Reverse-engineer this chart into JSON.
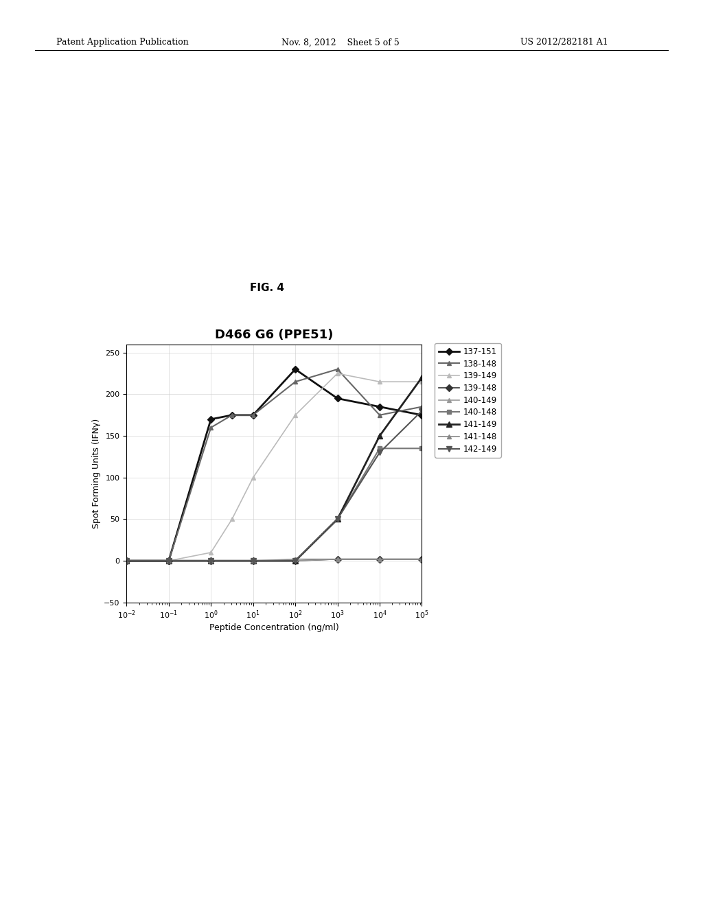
{
  "title": "D466 G6 (PPE51)",
  "fig_label": "FIG. 4",
  "xlabel": "Peptide Concentration (ng/ml)",
  "ylabel": "Spot Forming Units (IFNγ)",
  "ylim": [
    -50,
    260
  ],
  "yticks": [
    -50,
    0,
    50,
    100,
    150,
    200,
    250
  ],
  "header_left": "Patent Application Publication",
  "header_mid": "Nov. 8, 2012    Sheet 5 of 5",
  "header_right": "US 2012/282181 A1",
  "series": [
    {
      "label": "137-151",
      "color": "#111111",
      "marker": "D",
      "markersize": 5,
      "linewidth": 2.0,
      "x_exp": [
        -2,
        -1,
        0,
        0.5,
        1,
        2,
        3,
        4,
        5
      ],
      "y": [
        0,
        0,
        170,
        175,
        175,
        230,
        195,
        185,
        175
      ]
    },
    {
      "label": "138-148",
      "color": "#666666",
      "marker": "^",
      "markersize": 5,
      "linewidth": 1.5,
      "x_exp": [
        -2,
        -1,
        0,
        0.5,
        1,
        2,
        3,
        4,
        5
      ],
      "y": [
        0,
        0,
        160,
        175,
        175,
        215,
        230,
        175,
        185
      ]
    },
    {
      "label": "139-149",
      "color": "#bbbbbb",
      "marker": "^",
      "markersize": 5,
      "linewidth": 1.2,
      "x_exp": [
        -2,
        -1,
        0,
        0.5,
        1,
        2,
        3,
        4,
        5
      ],
      "y": [
        0,
        0,
        10,
        50,
        100,
        175,
        225,
        215,
        215
      ]
    },
    {
      "label": "139-148",
      "color": "#333333",
      "marker": "D",
      "markersize": 5,
      "linewidth": 1.2,
      "x_exp": [
        -2,
        -1,
        0,
        1,
        2,
        3,
        4,
        5
      ],
      "y": [
        0,
        0,
        0,
        0,
        0,
        2,
        2,
        2
      ]
    },
    {
      "label": "140-149",
      "color": "#999999",
      "marker": "^",
      "markersize": 5,
      "linewidth": 1.2,
      "x_exp": [
        -2,
        -1,
        0,
        1,
        2,
        3,
        4,
        5
      ],
      "y": [
        0,
        0,
        0,
        0,
        0,
        2,
        2,
        2
      ]
    },
    {
      "label": "140-148",
      "color": "#777777",
      "marker": "s",
      "markersize": 5,
      "linewidth": 1.5,
      "x_exp": [
        -2,
        -1,
        0,
        1,
        2,
        3,
        4,
        5
      ],
      "y": [
        0,
        0,
        0,
        0,
        0,
        50,
        135,
        135
      ]
    },
    {
      "label": "141-149",
      "color": "#222222",
      "marker": "^",
      "markersize": 6,
      "linewidth": 2.0,
      "x_exp": [
        -2,
        -1,
        0,
        1,
        2,
        3,
        4,
        5
      ],
      "y": [
        0,
        0,
        0,
        0,
        0,
        50,
        150,
        220
      ]
    },
    {
      "label": "141-148",
      "color": "#888888",
      "marker": "^",
      "markersize": 5,
      "linewidth": 1.2,
      "x_exp": [
        -2,
        -1,
        0,
        1,
        2,
        3,
        4,
        5
      ],
      "y": [
        0,
        0,
        0,
        0,
        2,
        2,
        2,
        2
      ]
    },
    {
      "label": "142-149",
      "color": "#555555",
      "marker": "v",
      "markersize": 6,
      "linewidth": 1.5,
      "x_exp": [
        -2,
        -1,
        0,
        1,
        2,
        3,
        4,
        5
      ],
      "y": [
        0,
        0,
        0,
        0,
        0,
        50,
        130,
        180
      ]
    }
  ]
}
